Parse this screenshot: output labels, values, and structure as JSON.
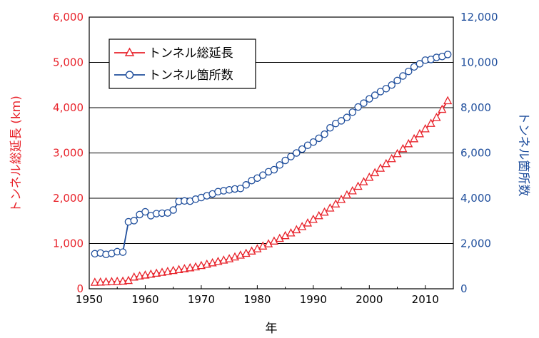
{
  "colors": {
    "left": "#e8232b",
    "right": "#1f4e9c",
    "grid": "#000000"
  },
  "chart_data": {
    "type": "line",
    "xlabel": "年",
    "ylabel_left": "トンネル総延長 (km)",
    "ylabel_right": "トンネル箇所数",
    "xlim": [
      1950,
      2015
    ],
    "ylim_left": [
      0,
      6000
    ],
    "ylim_right": [
      0,
      12000
    ],
    "x_ticks": [
      "1950",
      "1960",
      "1970",
      "1980",
      "1990",
      "2000",
      "2010"
    ],
    "y_ticks_left": [
      "0",
      "1,000",
      "2,000",
      "3,000",
      "4,000",
      "5,000",
      "6,000"
    ],
    "y_ticks_right": [
      "0",
      "2,000",
      "4,000",
      "6,000",
      "8,000",
      "10,000",
      "12,000"
    ],
    "grid": "horizontal",
    "legend_position": "top-left",
    "series": [
      {
        "name": "トンネル総延長",
        "axis": "left",
        "marker": "triangle-open",
        "x": [
          1951,
          1952,
          1953,
          1954,
          1955,
          1956,
          1957,
          1958,
          1959,
          1960,
          1961,
          1962,
          1963,
          1964,
          1965,
          1966,
          1967,
          1968,
          1969,
          1970,
          1971,
          1972,
          1973,
          1974,
          1975,
          1976,
          1977,
          1978,
          1979,
          1980,
          1981,
          1982,
          1983,
          1984,
          1985,
          1986,
          1987,
          1988,
          1989,
          1990,
          1991,
          1992,
          1993,
          1994,
          1995,
          1996,
          1997,
          1998,
          1999,
          2000,
          2001,
          2002,
          2003,
          2004,
          2005,
          2006,
          2007,
          2008,
          2009,
          2010,
          2011,
          2012,
          2013,
          2014
        ],
        "values": [
          140,
          145,
          150,
          155,
          160,
          165,
          180,
          255,
          280,
          300,
          320,
          340,
          360,
          380,
          400,
          420,
          440,
          460,
          480,
          510,
          540,
          570,
          600,
          630,
          660,
          700,
          740,
          780,
          830,
          880,
          940,
          990,
          1050,
          1110,
          1170,
          1230,
          1300,
          1370,
          1450,
          1530,
          1610,
          1690,
          1780,
          1870,
          1970,
          2070,
          2160,
          2260,
          2360,
          2460,
          2560,
          2660,
          2760,
          2870,
          2980,
          3090,
          3200,
          3310,
          3420,
          3530,
          3650,
          3780,
          3960,
          4150
        ]
      },
      {
        "name": "トンネル箇所数",
        "axis": "right",
        "marker": "circle-open",
        "x": [
          1951,
          1952,
          1953,
          1954,
          1955,
          1956,
          1957,
          1958,
          1959,
          1960,
          1961,
          1962,
          1963,
          1964,
          1965,
          1966,
          1967,
          1968,
          1969,
          1970,
          1971,
          1972,
          1973,
          1974,
          1975,
          1976,
          1977,
          1978,
          1979,
          1980,
          1981,
          1982,
          1983,
          1984,
          1985,
          1986,
          1987,
          1988,
          1989,
          1990,
          1991,
          1992,
          1993,
          1994,
          1995,
          1996,
          1997,
          1998,
          1999,
          2000,
          2001,
          2002,
          2003,
          2004,
          2005,
          2006,
          2007,
          2008,
          2009,
          2010,
          2011,
          2012,
          2013,
          2014
        ],
        "values": [
          1550,
          1580,
          1520,
          1560,
          1640,
          1620,
          2960,
          3010,
          3280,
          3400,
          3230,
          3320,
          3340,
          3350,
          3480,
          3860,
          3880,
          3870,
          3960,
          4030,
          4110,
          4190,
          4290,
          4330,
          4370,
          4410,
          4430,
          4590,
          4780,
          4890,
          5020,
          5170,
          5260,
          5470,
          5670,
          5840,
          6000,
          6170,
          6340,
          6480,
          6650,
          6830,
          7110,
          7300,
          7420,
          7570,
          7800,
          8030,
          8200,
          8390,
          8550,
          8710,
          8840,
          9000,
          9200,
          9400,
          9600,
          9800,
          9940,
          10100,
          10130,
          10220,
          10260,
          10350
        ]
      }
    ]
  }
}
